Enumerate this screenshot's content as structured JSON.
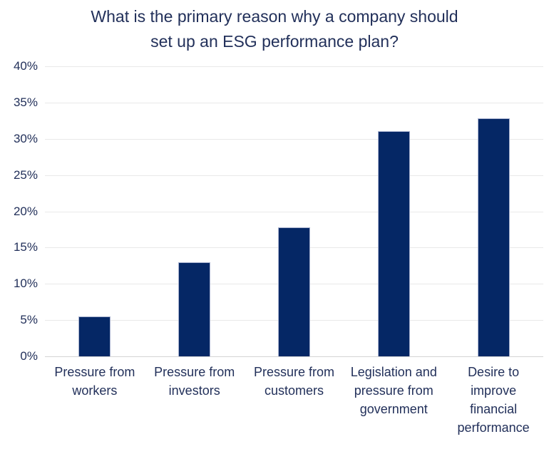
{
  "chart_data": {
    "type": "bar",
    "title": "What is the primary reason why a company should set up an ESG performance plan?",
    "title_display": "What is the primary reason why a company should\nset up an ESG performance plan?",
    "categories": [
      "Pressure from workers",
      "Pressure from investors",
      "Pressure from customers",
      "Legislation and pressure from government",
      "Desire to improve financial performance"
    ],
    "x_labels_display": [
      "Pressure from\nworkers",
      "Pressure from\ninvestors",
      "Pressure from\ncustomers",
      "Legislation and\npressure from\ngovernment",
      "Desire to\nimprove\nfinancial\nperformance"
    ],
    "values": [
      5.5,
      13.0,
      17.8,
      31.1,
      32.8
    ],
    "unit": "%",
    "xlabel": "",
    "ylabel": "",
    "ylim": [
      0,
      40
    ],
    "y_tick_step": 5,
    "y_tick_labels": [
      "0%",
      "5%",
      "10%",
      "15%",
      "20%",
      "25%",
      "30%",
      "35%",
      "40%"
    ],
    "grid": true,
    "legend": false,
    "colors": {
      "bar_fill": "#052765",
      "bar_border": "#a9b2cf",
      "gridline": "#e9e9e9",
      "axis_line": "#d4d4d4",
      "text": "#22305a"
    }
  }
}
